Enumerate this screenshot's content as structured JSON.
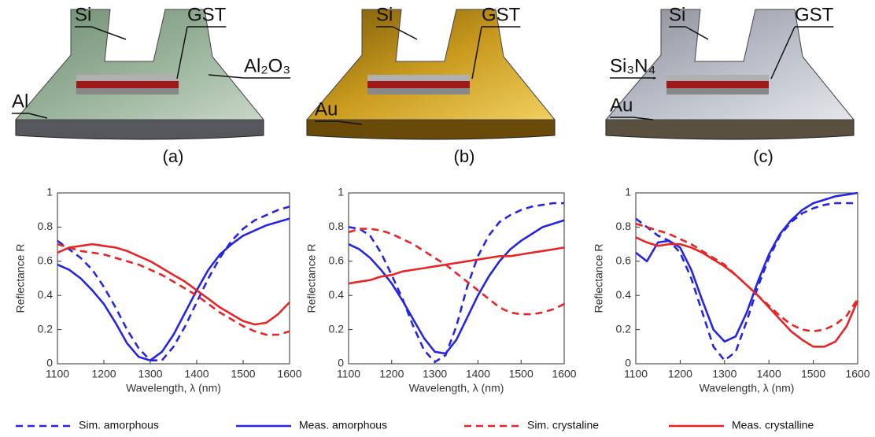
{
  "chart_data": [
    {
      "type": "line",
      "panel_label": "(a)",
      "device_labels": [
        "Si",
        "GST",
        "Al₂O₃",
        "Al"
      ],
      "ylabel": "Reflectance R",
      "xlabel": "Wavelength, λ (nm)",
      "x": [
        1100,
        1125,
        1150,
        1175,
        1200,
        1225,
        1250,
        1275,
        1300,
        1325,
        1350,
        1375,
        1400,
        1425,
        1450,
        1475,
        1500,
        1525,
        1550,
        1575,
        1600
      ],
      "xlim": [
        1100,
        1600
      ],
      "xticks": [
        1100,
        1200,
        1300,
        1400,
        1500,
        1600
      ],
      "ylim": [
        0,
        1
      ],
      "yticks": [
        0,
        0.2,
        0.4,
        0.6,
        0.8,
        1
      ],
      "series": [
        {
          "name": "Sim. amorphous",
          "color": "#2626e0",
          "line_style": "dashed",
          "values": [
            0.72,
            0.67,
            0.62,
            0.55,
            0.45,
            0.33,
            0.2,
            0.09,
            0.02,
            0.02,
            0.1,
            0.22,
            0.36,
            0.5,
            0.62,
            0.72,
            0.79,
            0.84,
            0.87,
            0.9,
            0.92
          ]
        },
        {
          "name": "Meas. amorphous",
          "color": "#2626e0",
          "line_style": "solid",
          "values": [
            0.58,
            0.55,
            0.5,
            0.43,
            0.35,
            0.24,
            0.12,
            0.04,
            0.02,
            0.07,
            0.17,
            0.3,
            0.43,
            0.55,
            0.64,
            0.7,
            0.75,
            0.78,
            0.81,
            0.83,
            0.85
          ]
        },
        {
          "name": "Sim. crystaline",
          "color": "#e62626",
          "line_style": "dashed",
          "values": [
            0.7,
            0.68,
            0.66,
            0.65,
            0.64,
            0.62,
            0.6,
            0.58,
            0.55,
            0.52,
            0.48,
            0.44,
            0.4,
            0.35,
            0.3,
            0.26,
            0.22,
            0.19,
            0.17,
            0.17,
            0.19
          ]
        },
        {
          "name": "Meas. crystalline",
          "color": "#e62626",
          "line_style": "solid",
          "values": [
            0.65,
            0.68,
            0.69,
            0.7,
            0.69,
            0.68,
            0.66,
            0.63,
            0.6,
            0.56,
            0.52,
            0.48,
            0.43,
            0.38,
            0.33,
            0.29,
            0.25,
            0.23,
            0.24,
            0.29,
            0.36
          ]
        }
      ]
    },
    {
      "type": "line",
      "panel_label": "(b)",
      "device_labels": [
        "Si",
        "GST",
        "Au"
      ],
      "ylabel": "Reflectance R",
      "xlabel": "Wavelength, λ (nm)",
      "x": [
        1100,
        1125,
        1150,
        1175,
        1200,
        1225,
        1250,
        1275,
        1300,
        1325,
        1350,
        1375,
        1400,
        1425,
        1450,
        1475,
        1500,
        1525,
        1550,
        1575,
        1600
      ],
      "xlim": [
        1100,
        1600
      ],
      "xticks": [
        1100,
        1200,
        1300,
        1400,
        1500,
        1600
      ],
      "ylim": [
        0,
        1
      ],
      "yticks": [
        0,
        0.2,
        0.4,
        0.6,
        0.8,
        1
      ],
      "series": [
        {
          "color": "#2626e0",
          "line_style": "dashed",
          "values": [
            0.8,
            0.79,
            0.75,
            0.65,
            0.52,
            0.38,
            0.22,
            0.08,
            0.01,
            0.05,
            0.22,
            0.45,
            0.63,
            0.75,
            0.83,
            0.87,
            0.9,
            0.92,
            0.93,
            0.94,
            0.94
          ]
        },
        {
          "color": "#2626e0",
          "line_style": "solid",
          "values": [
            0.7,
            0.67,
            0.62,
            0.55,
            0.47,
            0.37,
            0.26,
            0.15,
            0.07,
            0.06,
            0.14,
            0.27,
            0.4,
            0.51,
            0.6,
            0.67,
            0.72,
            0.76,
            0.8,
            0.82,
            0.84
          ]
        },
        {
          "color": "#e62626",
          "line_style": "dashed",
          "values": [
            0.77,
            0.79,
            0.79,
            0.78,
            0.76,
            0.73,
            0.7,
            0.66,
            0.62,
            0.58,
            0.53,
            0.48,
            0.43,
            0.38,
            0.33,
            0.3,
            0.29,
            0.29,
            0.3,
            0.32,
            0.35
          ]
        },
        {
          "color": "#e62626",
          "line_style": "solid",
          "values": [
            0.47,
            0.48,
            0.49,
            0.51,
            0.52,
            0.54,
            0.55,
            0.56,
            0.57,
            0.58,
            0.59,
            0.6,
            0.61,
            0.62,
            0.63,
            0.63,
            0.64,
            0.65,
            0.66,
            0.67,
            0.68
          ]
        }
      ]
    },
    {
      "type": "line",
      "panel_label": "(c)",
      "device_labels": [
        "Si",
        "GST",
        "Si₃N₄",
        "Au"
      ],
      "ylabel": "Reflectance R",
      "xlabel": "Wavelength, λ (nm)",
      "x": [
        1100,
        1125,
        1150,
        1175,
        1200,
        1225,
        1250,
        1275,
        1300,
        1325,
        1350,
        1375,
        1400,
        1425,
        1450,
        1475,
        1500,
        1525,
        1550,
        1575,
        1600
      ],
      "xlim": [
        1100,
        1600
      ],
      "xticks": [
        1100,
        1200,
        1300,
        1400,
        1500,
        1600
      ],
      "ylim": [
        0,
        1
      ],
      "yticks": [
        0,
        0.2,
        0.4,
        0.6,
        0.8,
        1
      ],
      "series": [
        {
          "color": "#2626e0",
          "line_style": "dashed",
          "values": [
            0.85,
            0.8,
            0.75,
            0.72,
            0.65,
            0.5,
            0.3,
            0.1,
            0.02,
            0.07,
            0.25,
            0.45,
            0.62,
            0.75,
            0.83,
            0.88,
            0.91,
            0.93,
            0.94,
            0.94,
            0.94
          ]
        },
        {
          "color": "#2626e0",
          "line_style": "solid",
          "values": [
            0.65,
            0.6,
            0.71,
            0.72,
            0.68,
            0.55,
            0.37,
            0.2,
            0.13,
            0.16,
            0.3,
            0.48,
            0.64,
            0.76,
            0.84,
            0.9,
            0.94,
            0.96,
            0.98,
            0.99,
            1
          ]
        },
        {
          "color": "#e62626",
          "line_style": "dashed",
          "values": [
            0.82,
            0.8,
            0.78,
            0.76,
            0.73,
            0.7,
            0.66,
            0.62,
            0.58,
            0.52,
            0.46,
            0.4,
            0.34,
            0.28,
            0.23,
            0.2,
            0.19,
            0.2,
            0.23,
            0.28,
            0.38
          ]
        },
        {
          "color": "#e62626",
          "line_style": "solid",
          "values": [
            0.74,
            0.71,
            0.69,
            0.7,
            0.7,
            0.68,
            0.65,
            0.61,
            0.57,
            0.52,
            0.46,
            0.4,
            0.33,
            0.26,
            0.19,
            0.14,
            0.1,
            0.1,
            0.13,
            0.22,
            0.37
          ]
        }
      ]
    }
  ]
}
